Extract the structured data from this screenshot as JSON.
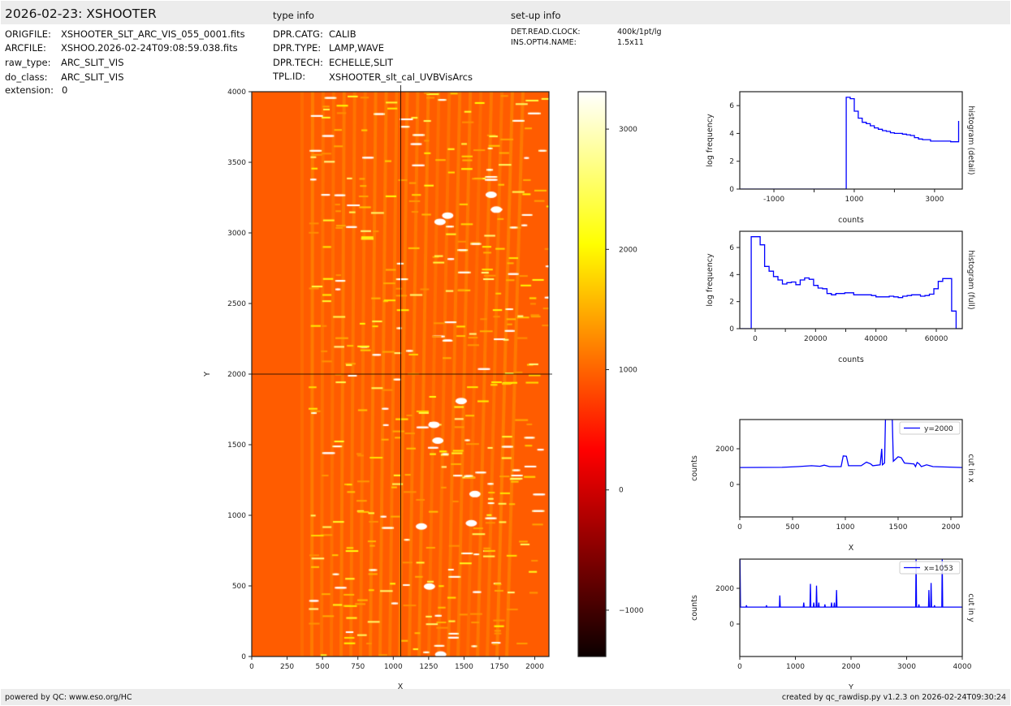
{
  "header": {
    "title": "2026-02-23: XSHOOTER",
    "type_info_title": "type info",
    "setup_info_title": "set-up info",
    "file_info": [
      {
        "key": "ORIGFILE:",
        "value": "XSHOOTER_SLT_ARC_VIS_055_0001.fits"
      },
      {
        "key": "ARCFILE:",
        "value": "XSHOO.2026-02-24T09:08:59.038.fits"
      },
      {
        "key": "raw_type:",
        "value": "ARC_SLIT_VIS"
      },
      {
        "key": "do_class:",
        "value": "ARC_SLIT_VIS"
      },
      {
        "key": "extension:",
        "value": "0"
      }
    ],
    "type_info": [
      {
        "key": "DPR.CATG:",
        "value": "CALIB"
      },
      {
        "key": "DPR.TYPE:",
        "value": "LAMP,WAVE"
      },
      {
        "key": "DPR.TECH:",
        "value": "ECHELLE,SLIT"
      },
      {
        "key": "TPL.ID:",
        "value": "XSHOOTER_slt_cal_UVBVisArcs"
      }
    ],
    "setup_info": [
      {
        "key": "DET.READ.CLOCK:",
        "value": "400k/1pt/lg"
      },
      {
        "key": "INS.OPTI4.NAME:",
        "value": "1.5x11"
      }
    ]
  },
  "footer": {
    "left": "powered by QC: www.eso.org/HC",
    "right": "created by qc_rawdisp.py v1.2.3 on 2026-02-24T09:30:24"
  },
  "colors": {
    "line": "#0000ff",
    "header_bg": "#ececec",
    "colormap": "hot"
  },
  "chart_data": [
    {
      "type": "heatmap",
      "xlabel": "X",
      "ylabel": "Y",
      "xlim": [
        0,
        2100
      ],
      "ylim": [
        0,
        4000
      ],
      "xticks": [
        "0",
        "250",
        "500",
        "750",
        "1000",
        "1250",
        "1500",
        "1750",
        "2000"
      ],
      "yticks": [
        "0",
        "500",
        "1000",
        "1500",
        "2000",
        "2500",
        "3000",
        "3500",
        "4000"
      ],
      "crosshair": {
        "x": 1053,
        "y": 2000
      },
      "colorbar": {
        "range": [
          -1385,
          3311
        ],
        "ticks": [
          "−1000",
          "0",
          "1000",
          "2000",
          "3000"
        ],
        "tick_values": [
          -1000,
          0,
          1000,
          2000,
          3000
        ]
      }
    },
    {
      "type": "bar",
      "style": "step",
      "xlabel": "counts",
      "ylabel": "log frequency",
      "side_label": "histogram (detail)",
      "xlim": [
        -1850,
        3690
      ],
      "ylim": [
        0,
        7
      ],
      "xticks": [
        "-1000",
        "1000",
        "3000"
      ],
      "xtick_values": [
        -1000,
        1000,
        3000
      ],
      "minor_xtick_values": [
        0,
        2000
      ],
      "yticks": [
        "0",
        "2",
        "4",
        "6"
      ],
      "bin_start": 800,
      "bin_width": 100,
      "values": [
        6.6,
        6.5,
        5.6,
        5.1,
        4.8,
        4.7,
        4.55,
        4.4,
        4.3,
        4.2,
        4.15,
        4.05,
        4.0,
        4.0,
        3.95,
        3.9,
        3.85,
        3.7,
        3.6,
        3.55,
        3.55,
        3.45,
        3.45,
        3.45,
        3.45,
        3.45,
        3.4,
        3.4,
        4.9
      ]
    },
    {
      "type": "bar",
      "style": "step",
      "xlabel": "counts",
      "ylabel": "log frequency",
      "side_label": "histogram (full)",
      "xlim": [
        -5100,
        68600
      ],
      "ylim": [
        0,
        7.2
      ],
      "xticks": [
        "0",
        "20000",
        "40000",
        "60000"
      ],
      "xtick_values": [
        0,
        20000,
        40000,
        60000
      ],
      "minor_xtick_values": [
        10000,
        30000,
        50000
      ],
      "yticks": [
        "0",
        "2",
        "4",
        "6"
      ],
      "bin_start": -1300,
      "bin_width": 1475,
      "values": [
        6.8,
        6.8,
        6.2,
        4.6,
        4.25,
        3.85,
        3.6,
        3.3,
        3.4,
        3.45,
        3.25,
        3.6,
        3.75,
        3.65,
        3.2,
        3.0,
        2.95,
        2.6,
        2.5,
        2.6,
        2.6,
        2.65,
        2.65,
        2.5,
        2.5,
        2.5,
        2.5,
        2.45,
        2.35,
        2.35,
        2.35,
        2.4,
        2.35,
        2.3,
        2.4,
        2.45,
        2.5,
        2.5,
        2.4,
        2.45,
        2.55,
        2.95,
        3.5,
        3.7,
        3.7,
        1.3,
        0
      ]
    },
    {
      "type": "line",
      "xlabel": "X",
      "ylabel": "counts",
      "side_label": "cut in x",
      "legend": "y=2000",
      "legend_position": "top-right",
      "xlim": [
        0,
        2108
      ],
      "ylim": [
        -1818,
        3636
      ],
      "xticks": [
        "0",
        "500",
        "1000",
        "1500",
        "2000"
      ],
      "xtick_values": [
        0,
        500,
        1000,
        1500,
        2000
      ],
      "yticks": [
        "0",
        "2000"
      ],
      "ytick_values": [
        0,
        2000
      ],
      "points": [
        [
          0,
          950
        ],
        [
          400,
          960
        ],
        [
          550,
          1000
        ],
        [
          680,
          1050
        ],
        [
          760,
          1020
        ],
        [
          800,
          1080
        ],
        [
          850,
          1000
        ],
        [
          960,
          1000
        ],
        [
          980,
          1600
        ],
        [
          1010,
          1580
        ],
        [
          1030,
          1050
        ],
        [
          1150,
          1050
        ],
        [
          1200,
          1250
        ],
        [
          1240,
          1150
        ],
        [
          1260,
          1050
        ],
        [
          1330,
          1100
        ],
        [
          1345,
          2000
        ],
        [
          1352,
          1100
        ],
        [
          1372,
          1200
        ],
        [
          1380,
          6000
        ],
        [
          1445,
          6000
        ],
        [
          1455,
          1300
        ],
        [
          1500,
          1550
        ],
        [
          1530,
          1500
        ],
        [
          1560,
          1200
        ],
        [
          1650,
          1150
        ],
        [
          1665,
          1000
        ],
        [
          1680,
          1230
        ],
        [
          1700,
          1150
        ],
        [
          1720,
          1000
        ],
        [
          1770,
          1100
        ],
        [
          1830,
          1000
        ],
        [
          2108,
          950
        ]
      ]
    },
    {
      "type": "line",
      "xlabel": "Y",
      "ylabel": "counts",
      "side_label": "cut in y",
      "legend": "x=1053",
      "legend_position": "top-right",
      "xlim": [
        0,
        4000
      ],
      "ylim": [
        -1818,
        3636
      ],
      "xticks": [
        "0",
        "1000",
        "2000",
        "3000",
        "4000"
      ],
      "xtick_values": [
        0,
        1000,
        2000,
        3000,
        4000
      ],
      "yticks": [
        "0",
        "2000"
      ],
      "ytick_values": [
        0,
        2000
      ],
      "baseline": 950,
      "peaks": [
        [
          5,
          6000
        ],
        [
          120,
          1050
        ],
        [
          480,
          1050
        ],
        [
          720,
          1600
        ],
        [
          1150,
          1200
        ],
        [
          1270,
          2250
        ],
        [
          1330,
          1200
        ],
        [
          1380,
          2150
        ],
        [
          1420,
          1200
        ],
        [
          1530,
          1100
        ],
        [
          1650,
          1200
        ],
        [
          1700,
          1200
        ],
        [
          1740,
          1900
        ],
        [
          3170,
          6000
        ],
        [
          3220,
          1100
        ],
        [
          3400,
          1900
        ],
        [
          3440,
          2300
        ],
        [
          3500,
          1050
        ],
        [
          3640,
          6000
        ]
      ]
    }
  ]
}
